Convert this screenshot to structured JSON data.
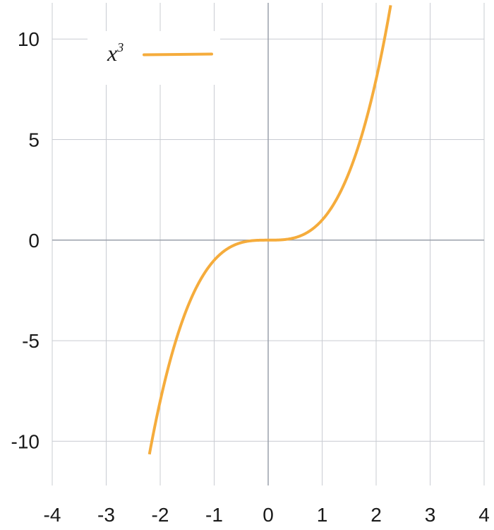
{
  "chart_data": {
    "type": "line",
    "title": "",
    "xlabel": "",
    "ylabel": "",
    "xlim": [
      -4,
      4
    ],
    "ylim": [
      -12.2,
      11.8
    ],
    "x_ticks": [
      -4,
      -3,
      -2,
      -1,
      0,
      1,
      2,
      3,
      4
    ],
    "x_tick_labels": [
      "-4",
      "-3",
      "-2",
      "-1",
      "0",
      "1",
      "2",
      "3",
      "4"
    ],
    "y_ticks": [
      -10,
      -5,
      0,
      5,
      10
    ],
    "y_tick_labels": [
      "-10",
      "-5",
      "0",
      "5",
      "10"
    ],
    "grid": true,
    "legend_position": "top-left",
    "series": [
      {
        "name": "x",
        "name_superscript": "3",
        "function": "x^3",
        "color": "#f5ac3c",
        "x": [
          -2.2,
          -2.0,
          -1.8,
          -1.6,
          -1.4,
          -1.2,
          -1.0,
          -0.8,
          -0.6,
          -0.4,
          -0.2,
          0,
          0.2,
          0.4,
          0.6,
          0.8,
          1.0,
          1.2,
          1.4,
          1.6,
          1.8,
          2.0,
          2.2,
          2.28
        ],
        "y": [
          -10.648,
          -8.0,
          -5.832,
          -4.096,
          -2.744,
          -1.728,
          -1.0,
          -0.512,
          -0.216,
          -0.064,
          -0.008,
          0,
          0.008,
          0.064,
          0.216,
          0.512,
          1.0,
          1.728,
          2.744,
          4.096,
          5.832,
          8.0,
          10.648,
          11.852
        ]
      }
    ]
  },
  "colors": {
    "grid": "#c9ccd2",
    "axis": "#9aa0ab",
    "series": "#f5ac3c"
  }
}
